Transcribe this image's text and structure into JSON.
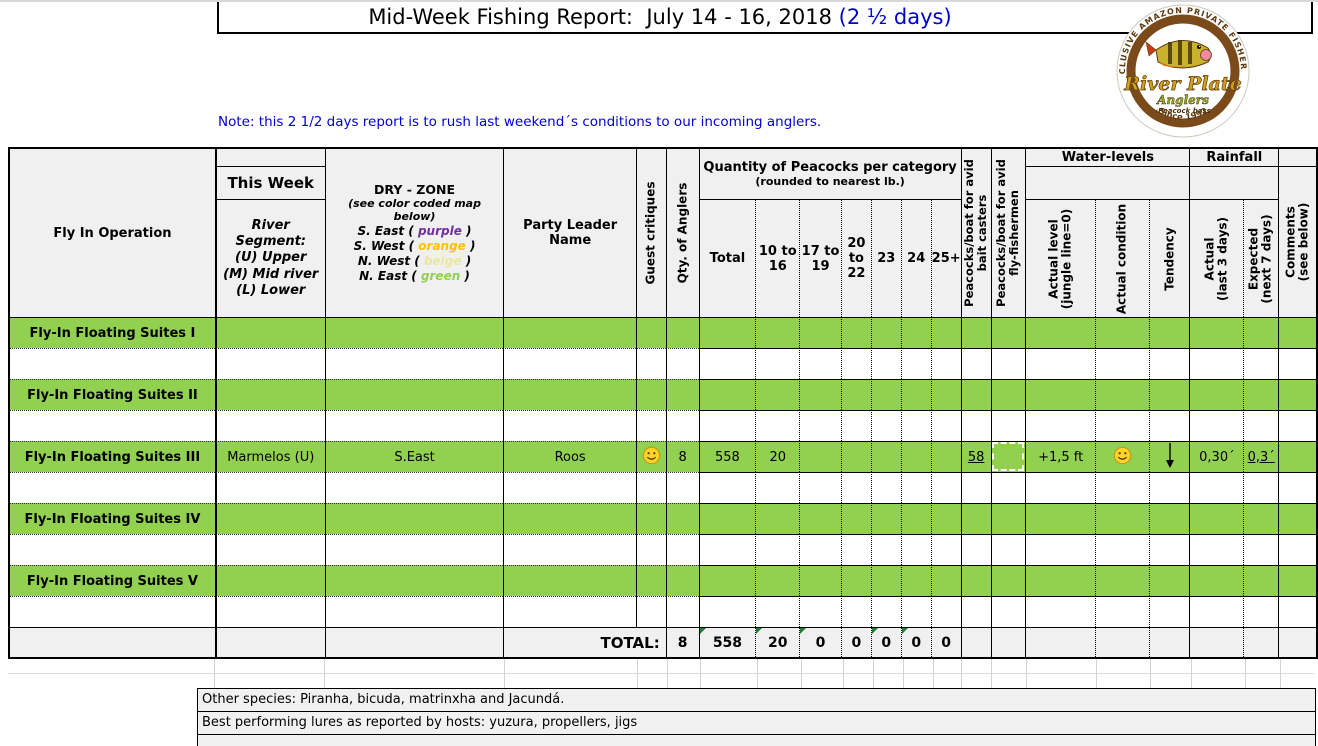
{
  "title": {
    "main": "Mid-Week Fishing Report:  July 14 - 16, 2018 ",
    "highlight": "(2 ½ days)"
  },
  "note": "Note:  this 2 1/2 days report is to rush last weekend´s conditions to our incoming anglers.",
  "logo": {
    "arc_text": "EXCLUSIVE AMAZON PRIVATE FISHERIES",
    "name_top": "River Plate",
    "name_bottom": "Anglers",
    "tagline": "‹Peacock bass",
    "since": "Since 1992"
  },
  "header": {
    "fly_in_operation": "Fly In Operation",
    "this_week": "This Week",
    "river_segment": "River Segment:\n(U) Upper\n(M) Mid river\n(L) Lower",
    "dry_zone": {
      "title": "DRY - ZONE",
      "subtitle": "(see color coded map below)",
      "zones": [
        {
          "prefix": "S. East ( ",
          "word": "purple",
          "suffix": " )",
          "color": "#7030a0"
        },
        {
          "prefix": "S. West ( ",
          "word": "orange",
          "suffix": " )",
          "color": "#ffc000"
        },
        {
          "prefix": "N. West ( ",
          "word": "beige",
          "suffix": " )",
          "color": "#e9e79b"
        },
        {
          "prefix": "N. East ( ",
          "word": "green",
          "suffix": " )",
          "color": "#92d050"
        }
      ]
    },
    "party_leader": "Party Leader Name",
    "guest_critiques": "Guest critiques",
    "qty_of_anglers": "Qty. of Anglers",
    "peacocks": {
      "title": "Quantity of Peacocks per category",
      "subtitle": "(rounded to nearest lb.)",
      "columns": [
        "Total",
        "10 to 16",
        "17 to 19",
        "20 to 22",
        "23",
        "24",
        "25+"
      ]
    },
    "bait_casters": "Peacocks/boat for avid\nbait casters",
    "fly_fishermen": "Peacocks/boat for avid\nfly-fishermen",
    "water_levels": {
      "title": "Water-levels",
      "actual_level": "Actual level\n(jungle line=0)",
      "actual_condition": "Actual condition",
      "tendency": "Tendency"
    },
    "rainfall": {
      "title": "Rainfall",
      "actual": "Actual\n(last 3 days)",
      "expected": "Expected\n(next 7 days)"
    },
    "comments": "Comments\n(see below)"
  },
  "rows": [
    {
      "green": true,
      "name": "Fly-In Floating Suites I"
    },
    {
      "green": false,
      "name": ""
    },
    {
      "green": true,
      "name": "Fly-In Floating Suites II"
    },
    {
      "green": false,
      "name": ""
    },
    {
      "green": true,
      "name": "Fly-In Floating Suites III",
      "segment": "Marmelos (U)",
      "dry_zone": "S.East",
      "party_leader": "Roos",
      "critique": "smiley",
      "anglers": "8",
      "total": "558",
      "c10_16": "20",
      "c17_19": "",
      "c20_22": "",
      "c23": "",
      "c24": "",
      "c25": "",
      "bait": "58",
      "fly": "",
      "level": "+1,5 ft",
      "condition": "smiley",
      "tendency": "arrow-down",
      "rain3": "0,30´",
      "rain7": "0,3´",
      "comments": ""
    },
    {
      "green": false,
      "name": ""
    },
    {
      "green": true,
      "name": "Fly-In Floating Suites IV"
    },
    {
      "green": false,
      "name": ""
    },
    {
      "green": true,
      "name": "Fly-In Floating Suites V"
    },
    {
      "green": false,
      "name": ""
    }
  ],
  "total_row": {
    "label": "TOTAL:",
    "anglers": "8",
    "values": [
      "558",
      "20",
      "0",
      "0",
      "0",
      "0",
      "0"
    ]
  },
  "footer_notes": [
    "Other species: Piranha, bicuda, matrinxha and Jacundá.",
    "Best performing lures as reported by hosts: yuzura, propellers, jigs"
  ],
  "colors": {
    "row_green": "#92d050",
    "header_bg": "#f0f0f0",
    "note_blue": "#0000d4",
    "title_blue": "#0000cc"
  }
}
